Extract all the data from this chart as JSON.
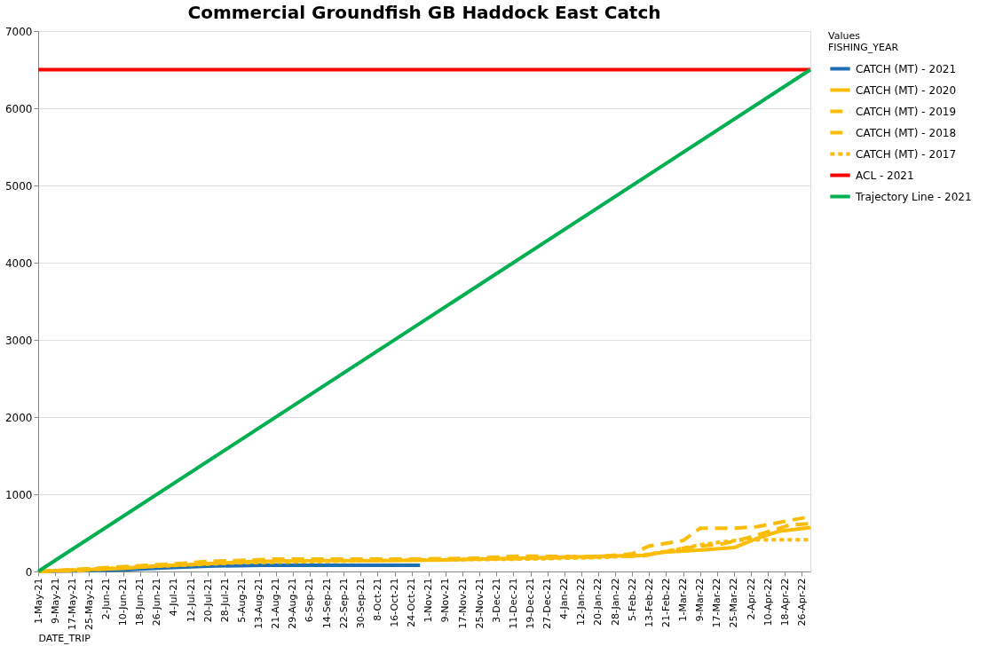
{
  "chart_data": {
    "type": "line",
    "title": "Commercial Groundfish GB Haddock East Catch",
    "xlabel": "DATE_TRIP",
    "legend_title": "Values",
    "annotations": [
      "FISHING_YEAR"
    ],
    "legend": "right",
    "grid": "y",
    "marker": "none",
    "xlim": [
      "2021-05-01",
      "2022-04-30"
    ],
    "ylim": [
      0,
      7000
    ],
    "yticks": [
      0,
      1000,
      2000,
      3000,
      4000,
      5000,
      6000,
      7000
    ],
    "xticks": [
      {
        "value": "2021-05-01",
        "label": "1-May-21"
      },
      {
        "value": "2021-05-09",
        "label": "9-May-21"
      },
      {
        "value": "2021-05-17",
        "label": "17-May-21"
      },
      {
        "value": "2021-05-25",
        "label": "25-May-21"
      },
      {
        "value": "2021-06-02",
        "label": "2-Jun-21"
      },
      {
        "value": "2021-06-10",
        "label": "10-Jun-21"
      },
      {
        "value": "2021-06-18",
        "label": "18-Jun-21"
      },
      {
        "value": "2021-06-26",
        "label": "26-Jun-21"
      },
      {
        "value": "2021-07-04",
        "label": "4-Jul-21"
      },
      {
        "value": "2021-07-12",
        "label": "12-Jul-21"
      },
      {
        "value": "2021-07-20",
        "label": "20-Jul-21"
      },
      {
        "value": "2021-07-28",
        "label": "28-Jul-21"
      },
      {
        "value": "2021-08-05",
        "label": "5-Aug-21"
      },
      {
        "value": "2021-08-13",
        "label": "13-Aug-21"
      },
      {
        "value": "2021-08-21",
        "label": "21-Aug-21"
      },
      {
        "value": "2021-08-29",
        "label": "29-Aug-21"
      },
      {
        "value": "2021-09-06",
        "label": "6-Sep-21"
      },
      {
        "value": "2021-09-14",
        "label": "14-Sep-21"
      },
      {
        "value": "2021-09-22",
        "label": "22-Sep-21"
      },
      {
        "value": "2021-09-30",
        "label": "30-Sep-21"
      },
      {
        "value": "2021-10-08",
        "label": "8-Oct-21"
      },
      {
        "value": "2021-10-16",
        "label": "16-Oct-21"
      },
      {
        "value": "2021-10-24",
        "label": "24-Oct-21"
      },
      {
        "value": "2021-11-01",
        "label": "1-Nov-21"
      },
      {
        "value": "2021-11-09",
        "label": "9-Nov-21"
      },
      {
        "value": "2021-11-17",
        "label": "17-Nov-21"
      },
      {
        "value": "2021-11-25",
        "label": "25-Nov-21"
      },
      {
        "value": "2021-12-03",
        "label": "3-Dec-21"
      },
      {
        "value": "2021-12-11",
        "label": "11-Dec-21"
      },
      {
        "value": "2021-12-19",
        "label": "19-Dec-21"
      },
      {
        "value": "2021-12-27",
        "label": "27-Dec-21"
      },
      {
        "value": "2022-01-04",
        "label": "4-Jan-22"
      },
      {
        "value": "2022-01-12",
        "label": "12-Jan-22"
      },
      {
        "value": "2022-01-20",
        "label": "20-Jan-22"
      },
      {
        "value": "2022-01-28",
        "label": "28-Jan-22"
      },
      {
        "value": "2022-02-05",
        "label": "5-Feb-22"
      },
      {
        "value": "2022-02-13",
        "label": "13-Feb-22"
      },
      {
        "value": "2022-02-21",
        "label": "21-Feb-22"
      },
      {
        "value": "2022-03-01",
        "label": "1-Mar-22"
      },
      {
        "value": "2022-03-09",
        "label": "9-Mar-22"
      },
      {
        "value": "2022-03-17",
        "label": "17-Mar-22"
      },
      {
        "value": "2022-03-25",
        "label": "25-Mar-22"
      },
      {
        "value": "2022-04-02",
        "label": "2-Apr-22"
      },
      {
        "value": "2022-04-10",
        "label": "10-Apr-22"
      },
      {
        "value": "2022-04-18",
        "label": "18-Apr-22"
      },
      {
        "value": "2022-04-26",
        "label": "26-Apr-22"
      }
    ],
    "series": [
      {
        "name": "CATCH (MT) - 2021",
        "color": "#1f6fb4",
        "line_style": "solid",
        "x": [
          "2021-05-01",
          "2021-05-20",
          "2021-06-10",
          "2021-07-01",
          "2021-07-20",
          "2021-08-15",
          "2021-09-15",
          "2021-10-15",
          "2021-10-28"
        ],
        "values": [
          0,
          10,
          20,
          50,
          70,
          80,
          80,
          80,
          80
        ]
      },
      {
        "name": "CATCH (MT) - 2020",
        "color": "#fbbc05",
        "line_style": "solid",
        "x": [
          "2021-05-01",
          "2021-05-20",
          "2021-06-10",
          "2021-06-25",
          "2021-07-20",
          "2021-08-10",
          "2021-09-10",
          "2021-10-10",
          "2021-11-10",
          "2021-12-10",
          "2022-01-10",
          "2022-02-10",
          "2022-02-20",
          "2022-03-10",
          "2022-03-25",
          "2022-04-05",
          "2022-04-15",
          "2022-04-30"
        ],
        "values": [
          0,
          20,
          40,
          70,
          100,
          130,
          140,
          140,
          150,
          170,
          190,
          210,
          250,
          280,
          310,
          430,
          520,
          570
        ]
      },
      {
        "name": "CATCH (MT) - 2019",
        "color": "#fbbc05",
        "line_style": "dashed",
        "x": [
          "2021-05-01",
          "2021-05-20",
          "2021-06-15",
          "2021-07-20",
          "2021-08-20",
          "2021-09-20",
          "2021-10-20",
          "2021-11-20",
          "2021-12-15",
          "2022-01-15",
          "2022-02-10",
          "2022-03-01",
          "2022-03-20",
          "2022-04-01",
          "2022-04-20",
          "2022-04-30"
        ],
        "values": [
          0,
          10,
          60,
          130,
          160,
          160,
          160,
          170,
          200,
          190,
          200,
          300,
          360,
          440,
          600,
          620
        ]
      },
      {
        "name": "CATCH (MT) - 2018",
        "color": "#fbbc05",
        "line_style": "dashed",
        "x": [
          "2021-05-01",
          "2021-06-15",
          "2021-07-25",
          "2021-09-01",
          "2021-10-15",
          "2021-11-20",
          "2021-12-20",
          "2022-01-20",
          "2022-02-05",
          "2022-02-13",
          "2022-03-01",
          "2022-03-09",
          "2022-03-25",
          "2022-04-05",
          "2022-04-20",
          "2022-04-30"
        ],
        "values": [
          0,
          70,
          130,
          140,
          150,
          160,
          170,
          190,
          230,
          330,
          400,
          560,
          560,
          580,
          660,
          710
        ]
      },
      {
        "name": "CATCH (MT) - 2017",
        "color": "#fbbc05",
        "line_style": "dotted",
        "x": [
          "2021-05-01",
          "2021-06-20",
          "2021-08-01",
          "2021-09-15",
          "2021-11-01",
          "2021-12-15",
          "2022-01-20",
          "2022-02-10",
          "2022-02-25",
          "2022-03-10",
          "2022-03-25",
          "2022-04-01",
          "2022-04-30"
        ],
        "values": [
          0,
          60,
          110,
          130,
          150,
          160,
          180,
          210,
          280,
          350,
          400,
          410,
          410
        ]
      },
      {
        "name": "ACL - 2021",
        "color": "#ff0000",
        "line_style": "solid",
        "x": [
          "2021-05-01",
          "2022-04-30"
        ],
        "values": [
          6500,
          6500
        ]
      },
      {
        "name": "Trajectory Line - 2021",
        "color": "#00b050",
        "line_style": "solid",
        "x": [
          "2021-05-01",
          "2022-04-30"
        ],
        "values": [
          0,
          6500
        ]
      }
    ]
  }
}
